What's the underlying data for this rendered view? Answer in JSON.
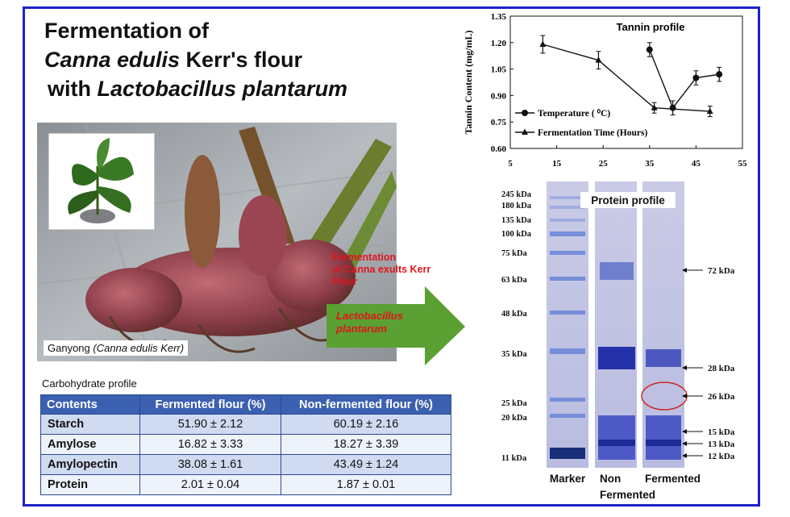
{
  "title": {
    "line1": "Fermentation of",
    "line2_italic": "Canna edulis",
    "line2_rest": " Kerr's flour",
    "line3_pre": "with ",
    "line3_italic": "Lactobacillus plantarum"
  },
  "photo": {
    "caption_pre": "Ganyong ",
    "caption_italic": "(Canna edulis Kerr)"
  },
  "process": {
    "ferm_line1": "Fermentation",
    "ferm_line2": "of Canna exults Kerr",
    "ferm_line3": "Flour",
    "arrow_line1": "Lactobacillus",
    "arrow_line2": "plantarum"
  },
  "carbohydrate": {
    "title": "Carbohydrate profile",
    "headers": [
      "Contents",
      "Fermented flour (%)",
      "Non-fermented flour (%)"
    ],
    "rows": [
      [
        "Starch",
        "51.90 ± 2.12",
        "60.19 ± 2.16"
      ],
      [
        "Amylose",
        "16.82 ± 3.33",
        "18.27 ± 3.39"
      ],
      [
        "Amylopectin",
        "38.08 ± 1.61",
        "43.49 ± 1.24"
      ],
      [
        "Protein",
        "2.01 ± 0.04",
        "1.87 ± 0.01"
      ]
    ]
  },
  "chart_data": {
    "type": "line",
    "title": "Tannin profile",
    "ylabel": "Tannin Content (mg/mL)",
    "xlabel": "",
    "xlim": [
      5,
      55
    ],
    "ylim": [
      0.6,
      1.35
    ],
    "xticks": [
      "5",
      "15",
      "25",
      "35",
      "45",
      "55"
    ],
    "yticks": [
      "0.60",
      "0.75",
      "0.90",
      "1.05",
      "1.20",
      "1.35"
    ],
    "legend_position": "bottom-left",
    "series": [
      {
        "name": "Temperature ( ⁰C)",
        "marker": "circle",
        "x": [
          35,
          40,
          45,
          50
        ],
        "y": [
          1.16,
          0.83,
          1.0,
          1.02
        ],
        "err": [
          0.04,
          0.04,
          0.04,
          0.04
        ]
      },
      {
        "name": "Fermentation Time (Hours)",
        "marker": "triangle",
        "x": [
          12,
          24,
          36,
          48
        ],
        "y": [
          1.19,
          1.1,
          0.83,
          0.81
        ],
        "err": [
          0.05,
          0.05,
          0.03,
          0.03
        ]
      }
    ]
  },
  "gel": {
    "title": "Protein profile",
    "marker_labels": [
      "245 kDa",
      "180 kDa",
      "135 kDa",
      "100 kDa",
      "75 kDa",
      "63 kDa",
      "48 kDa",
      "35 kDa",
      "25 kDa",
      "20 kDa",
      "11 kDa"
    ],
    "band_labels": [
      "72 kDa",
      "28 kDa",
      "26 kDa",
      "15 kDa",
      "13 kDa",
      "12 kDa"
    ],
    "lane_marker": "Marker",
    "lane_non_1": "Non",
    "lane_non_2": "Fermented",
    "lane_fermented": "Fermented"
  },
  "colors": {
    "frame": "#1d22c8",
    "table_header": "#3c60b0",
    "accent_red": "#e0151a",
    "arrow_green": "#5aa032"
  }
}
